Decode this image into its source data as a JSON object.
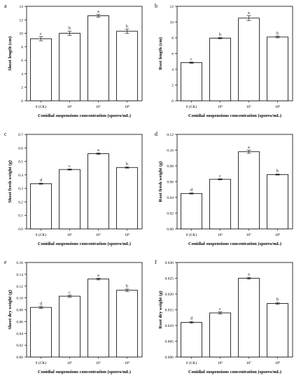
{
  "chart_data": [
    {
      "panel_letter": "a",
      "type": "bar",
      "categories": [
        "0 (CK)",
        "10^6",
        "10^7",
        "10^8"
      ],
      "tick_labels": [
        "0 (CK)",
        "10⁶",
        "10⁷",
        "10⁸"
      ],
      "values": [
        9.2,
        10.0,
        12.6,
        10.3
      ],
      "errors": [
        0.3,
        0.3,
        0.2,
        0.3
      ],
      "letters": [
        "c",
        "b",
        "a",
        "b"
      ],
      "xlabel": "Conidial suspensions concentration (spores/mL)",
      "ylabel": "Shoot length (cm)",
      "ylim": [
        0,
        14
      ],
      "yticks": [
        0,
        2,
        4,
        6,
        8,
        10,
        12,
        14
      ],
      "ytick_labels": [
        "0",
        "2",
        "4",
        "6",
        "8",
        "10",
        "12",
        "14"
      ],
      "grid": false
    },
    {
      "panel_letter": "b",
      "type": "bar",
      "categories": [
        "0 (CK)",
        "10^6",
        "10^7",
        "10^8"
      ],
      "tick_labels": [
        "0 (CK)",
        "10⁶",
        "10⁷",
        "10⁸"
      ],
      "values": [
        4.85,
        7.95,
        10.5,
        8.1
      ],
      "errors": [
        0.08,
        0.08,
        0.3,
        0.1
      ],
      "letters": [
        "c",
        "b",
        "a",
        "b"
      ],
      "xlabel": "Conidial suspensions concentration (spores/mL)",
      "ylabel": "Root length (cm)",
      "ylim": [
        0,
        12
      ],
      "yticks": [
        0,
        2,
        4,
        6,
        8,
        10,
        12
      ],
      "ytick_labels": [
        "0",
        "2",
        "4",
        "6",
        "8",
        "10",
        "12"
      ],
      "grid": false
    },
    {
      "panel_letter": "c",
      "type": "bar",
      "categories": [
        "0 (CK)",
        "10^6",
        "10^7",
        "10^8"
      ],
      "tick_labels": [
        "0 (CK)",
        "10⁶",
        "10⁷",
        "10⁸"
      ],
      "values": [
        0.335,
        0.44,
        0.557,
        0.455
      ],
      "errors": [
        0.004,
        0.004,
        0.006,
        0.005
      ],
      "letters": [
        "d",
        "c",
        "a",
        "b"
      ],
      "xlabel": "Conidial suspensions concentration (spores/mL)",
      "ylabel": "Shoot fresh weight (g)",
      "ylim": [
        0,
        0.7
      ],
      "yticks": [
        0,
        0.1,
        0.2,
        0.3,
        0.4,
        0.5,
        0.6,
        0.7
      ],
      "ytick_labels": [
        "0.0",
        "0.1",
        "0.2",
        "0.3",
        "0.4",
        "0.5",
        "0.6",
        "0.7"
      ],
      "grid": false
    },
    {
      "panel_letter": "d",
      "type": "bar",
      "categories": [
        "0 (CK)",
        "10^6",
        "10^7",
        "10^8"
      ],
      "tick_labels": [
        "0 (CK)",
        "10⁶",
        "10⁷",
        "10⁸"
      ],
      "values": [
        0.045,
        0.063,
        0.098,
        0.069
      ],
      "errors": [
        0.0007,
        0.0007,
        0.002,
        0.0006
      ],
      "letters": [
        "d",
        "c",
        "a",
        "b"
      ],
      "xlabel": "Conidial suspensions concentration (spores/mL)",
      "ylabel": "Root fresh weight (g)",
      "ylim": [
        0,
        0.12
      ],
      "yticks": [
        0,
        0.02,
        0.04,
        0.06,
        0.08,
        0.1,
        0.12
      ],
      "ytick_labels": [
        "0.00",
        "0.02",
        "0.04",
        "0.06",
        "0.08",
        "0.10",
        "0.12"
      ],
      "grid": false
    },
    {
      "panel_letter": "e",
      "type": "bar",
      "categories": [
        "0 (CK)",
        "10^6",
        "10^7",
        "10^8"
      ],
      "tick_labels": [
        "0 (CK)",
        "10⁶",
        "10⁷",
        "10⁸"
      ],
      "values": [
        0.084,
        0.103,
        0.132,
        0.113
      ],
      "errors": [
        0.0015,
        0.0015,
        0.0015,
        0.002
      ],
      "letters": [
        "d",
        "c",
        "a",
        "b"
      ],
      "xlabel": "Conidial suspensions concentration (spores/mL)",
      "ylabel": "Shoot dry weight (g)",
      "ylim": [
        0,
        0.16
      ],
      "yticks": [
        0,
        0.02,
        0.04,
        0.06,
        0.08,
        0.1,
        0.12,
        0.14,
        0.16
      ],
      "ytick_labels": [
        "0.00",
        "0.02",
        "0.04",
        "0.06",
        "0.08",
        "0.10",
        "0.12",
        "0.14",
        "0.16"
      ],
      "grid": false
    },
    {
      "panel_letter": "f",
      "type": "bar",
      "categories": [
        "0 (CK)",
        "10^6",
        "10^7",
        "10^8"
      ],
      "tick_labels": [
        "0 (CK)",
        "10⁶",
        "10⁷",
        "10⁸"
      ],
      "values": [
        0.011,
        0.014,
        0.025,
        0.017
      ],
      "errors": [
        0.0003,
        0.0003,
        0.0003,
        0.0003
      ],
      "letters": [
        "d",
        "c",
        "a",
        "b"
      ],
      "xlabel": "Conidial suspensions concentration (spores/mL)",
      "ylabel": "Root dry weight (g)",
      "ylim": [
        0,
        0.03
      ],
      "yticks": [
        0,
        0.005,
        0.01,
        0.015,
        0.02,
        0.025,
        0.03
      ],
      "ytick_labels": [
        "0.000",
        "0.005",
        "0.010",
        "0.015",
        "0.020",
        "0.025",
        "0.030"
      ],
      "grid": false
    }
  ]
}
